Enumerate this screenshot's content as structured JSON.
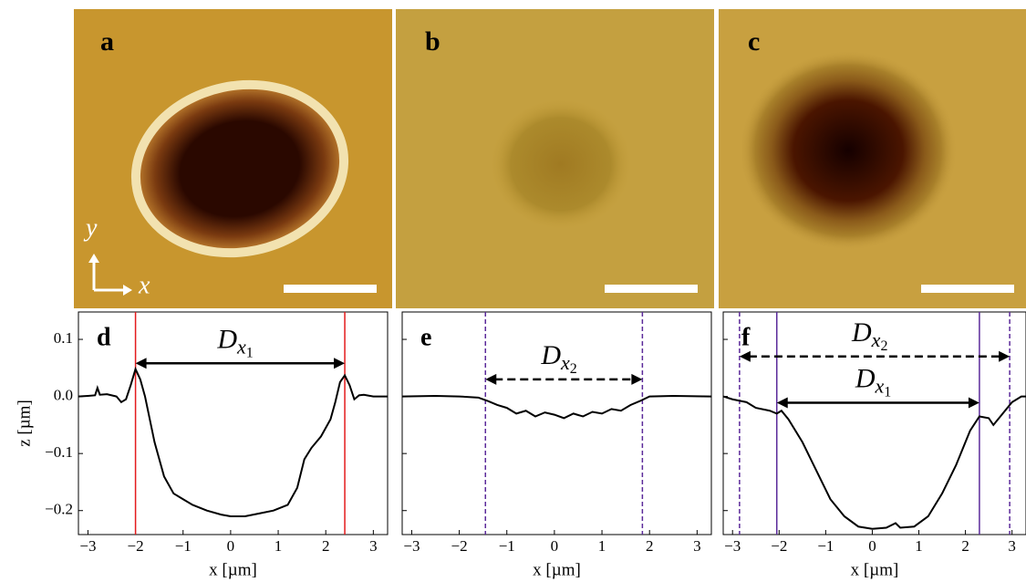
{
  "images": [
    {
      "label": "a",
      "axes": {
        "y": "y",
        "x": "x"
      }
    },
    {
      "label": "b"
    },
    {
      "label": "c"
    }
  ],
  "chart_data": [
    {
      "type": "line",
      "label": "d",
      "ylabel": "z [µm]",
      "xlabel": "x [µm]",
      "ytick_labels": true,
      "xlim": [
        -3.2,
        3.3
      ],
      "ylim": [
        -0.242,
        0.148
      ],
      "xticks": [
        {
          "value": -3,
          "label": "−3"
        },
        {
          "value": -2,
          "label": "−2"
        },
        {
          "value": -1,
          "label": "−1"
        },
        0,
        1,
        2,
        3
      ],
      "yticks": [
        0.1,
        {
          "value": 0,
          "label": "0.0"
        },
        {
          "value": -0.1,
          "label": "−0.1"
        },
        {
          "value": -0.2,
          "label": "−0.2"
        }
      ],
      "vlines": [
        {
          "x": -2.0,
          "color": "#e41a1c",
          "style": "solid"
        },
        {
          "x": 2.4,
          "color": "#e41a1c",
          "style": "solid"
        }
      ],
      "annotations": [
        {
          "text": "D",
          "sub": "x",
          "subsub": "1",
          "x": [
            -2.0,
            2.4
          ],
          "y": 0.058,
          "style": "solid"
        }
      ],
      "series": [
        {
          "color": "#000000",
          "x": [
            -3.2,
            -3.0,
            -2.85,
            -2.8,
            -2.75,
            -2.6,
            -2.4,
            -2.3,
            -2.2,
            -2.1,
            -2.0,
            -1.9,
            -1.8,
            -1.6,
            -1.4,
            -1.2,
            -1.0,
            -0.8,
            -0.5,
            -0.2,
            0,
            0.3,
            0.6,
            0.9,
            1.2,
            1.4,
            1.55,
            1.7,
            1.9,
            2.1,
            2.2,
            2.3,
            2.4,
            2.5,
            2.6,
            2.7,
            2.8,
            3.0,
            3.3
          ],
          "values": [
            0,
            0.001,
            0.002,
            0.015,
            0.003,
            0.004,
            0.0,
            -0.01,
            -0.005,
            0.02,
            0.048,
            0.03,
            0.0,
            -0.08,
            -0.14,
            -0.17,
            -0.18,
            -0.19,
            -0.2,
            -0.207,
            -0.21,
            -0.21,
            -0.205,
            -0.2,
            -0.19,
            -0.16,
            -0.11,
            -0.09,
            -0.07,
            -0.04,
            -0.01,
            0.025,
            0.037,
            0.02,
            -0.005,
            0.002,
            0.003,
            0.0,
            0.0
          ]
        }
      ]
    },
    {
      "type": "line",
      "label": "e",
      "xlabel": "x [µm]",
      "ytick_labels": false,
      "xlim": [
        -3.2,
        3.3
      ],
      "ylim": [
        -0.242,
        0.148
      ],
      "xticks": [
        {
          "value": -3,
          "label": "−3"
        },
        {
          "value": -2,
          "label": "−2"
        },
        {
          "value": -1,
          "label": "−1"
        },
        0,
        1,
        2,
        3
      ],
      "yticks": [
        0.1,
        0,
        -0.1,
        -0.2
      ],
      "vlines": [
        {
          "x": -1.45,
          "color": "#5b2a9a",
          "style": "dashed"
        },
        {
          "x": 1.85,
          "color": "#5b2a9a",
          "style": "dashed"
        }
      ],
      "annotations": [
        {
          "text": "D",
          "sub": "x",
          "subsub": "2",
          "x": [
            -1.45,
            1.85
          ],
          "y": 0.03,
          "style": "dashed"
        }
      ],
      "series": [
        {
          "color": "#000000",
          "x": [
            -3.2,
            -2.5,
            -2.0,
            -1.6,
            -1.4,
            -1.2,
            -1.0,
            -0.8,
            -0.6,
            -0.4,
            -0.2,
            0,
            0.2,
            0.4,
            0.6,
            0.8,
            1.0,
            1.2,
            1.4,
            1.6,
            1.8,
            2.0,
            2.5,
            3.3
          ],
          "values": [
            0,
            0.001,
            0,
            -0.002,
            -0.008,
            -0.015,
            -0.02,
            -0.03,
            -0.025,
            -0.035,
            -0.028,
            -0.032,
            -0.038,
            -0.03,
            -0.035,
            -0.027,
            -0.03,
            -0.022,
            -0.025,
            -0.015,
            -0.008,
            0,
            0.001,
            0
          ]
        }
      ]
    },
    {
      "type": "line",
      "label": "f",
      "xlabel": "x [µm]",
      "ytick_labels": false,
      "xlim": [
        -3.2,
        3.3
      ],
      "ylim": [
        -0.242,
        0.148
      ],
      "xticks": [
        {
          "value": -3,
          "label": "−3"
        },
        {
          "value": -2,
          "label": "−2"
        },
        {
          "value": -1,
          "label": "−1"
        },
        0,
        1,
        2,
        3
      ],
      "yticks": [
        0.1,
        0,
        -0.1,
        -0.2
      ],
      "vlines": [
        {
          "x": -2.85,
          "color": "#5b2a9a",
          "style": "dashed"
        },
        {
          "x": 2.95,
          "color": "#5b2a9a",
          "style": "dashed"
        },
        {
          "x": -2.05,
          "color": "#5b2a9a",
          "style": "solid"
        },
        {
          "x": 2.3,
          "color": "#5b2a9a",
          "style": "solid"
        }
      ],
      "annotations": [
        {
          "text": "D",
          "sub": "x",
          "subsub": "2",
          "x": [
            -2.85,
            2.95
          ],
          "y": 0.07,
          "style": "dashed"
        },
        {
          "text": "D",
          "sub": "x",
          "subsub": "1",
          "x": [
            -2.05,
            2.3
          ],
          "y": -0.011,
          "style": "solid"
        }
      ],
      "series": [
        {
          "color": "#000000",
          "x": [
            -3.2,
            -3.0,
            -2.7,
            -2.5,
            -2.2,
            -2.05,
            -1.95,
            -1.8,
            -1.5,
            -1.2,
            -0.9,
            -0.6,
            -0.3,
            0,
            0.3,
            0.5,
            0.6,
            0.9,
            1.2,
            1.5,
            1.8,
            2.1,
            2.3,
            2.5,
            2.6,
            2.8,
            3.0,
            3.2,
            3.3
          ],
          "values": [
            0,
            -0.005,
            -0.01,
            -0.02,
            -0.025,
            -0.03,
            -0.025,
            -0.04,
            -0.08,
            -0.13,
            -0.18,
            -0.21,
            -0.228,
            -0.232,
            -0.23,
            -0.222,
            -0.23,
            -0.228,
            -0.21,
            -0.17,
            -0.12,
            -0.06,
            -0.035,
            -0.038,
            -0.05,
            -0.03,
            -0.01,
            0.0,
            0.0
          ]
        }
      ]
    }
  ]
}
